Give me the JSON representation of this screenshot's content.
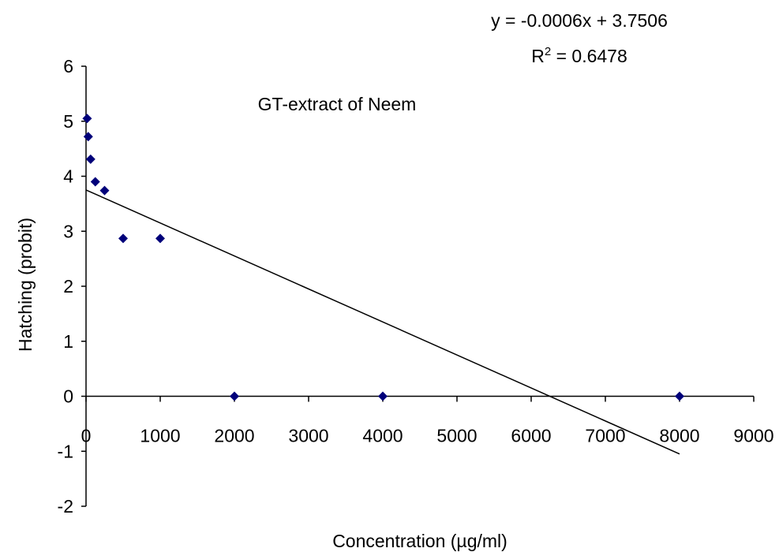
{
  "chart_data": {
    "type": "scatter",
    "title": "GT-extract of Neem",
    "xlabel": "Concentration (µg/ml)",
    "ylabel": "Hatching (probit)",
    "xlim": [
      0,
      9000
    ],
    "ylim": [
      -2,
      6
    ],
    "xticks": [
      "0",
      "1000",
      "2000",
      "3000",
      "4000",
      "5000",
      "6000",
      "7000",
      "8000",
      "9000"
    ],
    "yticks": [
      "-2",
      "-1",
      "0",
      "1",
      "2",
      "3",
      "4",
      "5",
      "6"
    ],
    "grid": false,
    "marker_color": "#00007a",
    "series": [
      {
        "points": [
          {
            "x": 15,
            "y": 5.05
          },
          {
            "x": 30,
            "y": 4.72
          },
          {
            "x": 62,
            "y": 4.31
          },
          {
            "x": 125,
            "y": 3.9
          },
          {
            "x": 250,
            "y": 3.74
          },
          {
            "x": 500,
            "y": 2.87
          },
          {
            "x": 1000,
            "y": 2.87
          },
          {
            "x": 2000,
            "y": 0
          },
          {
            "x": 4000,
            "y": 0
          },
          {
            "x": 8000,
            "y": 0
          }
        ]
      }
    ],
    "trendline": {
      "slope": -0.0006,
      "intercept": 3.7506,
      "x_range": [
        0,
        8000
      ],
      "equation": "y = -0.0006x + 3.7506",
      "r2_prefix": "R",
      "r2_exp": "2",
      "r2_value": " = 0.6478"
    }
  }
}
